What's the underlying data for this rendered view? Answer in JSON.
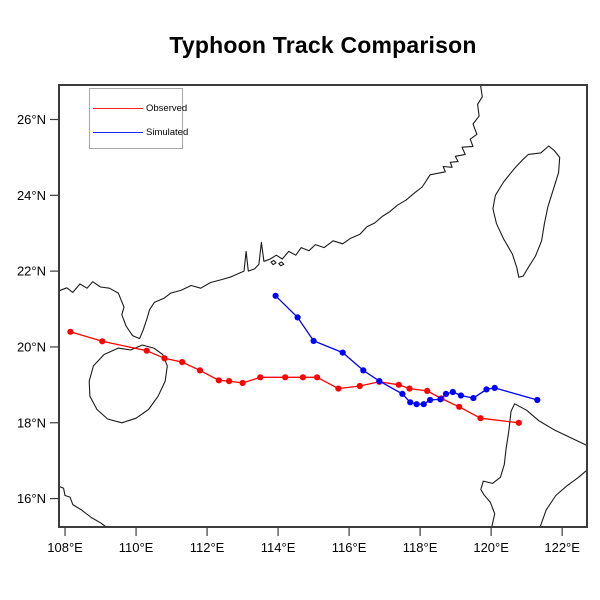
{
  "title": "Typhoon Track Comparison",
  "legend": {
    "items": [
      {
        "label": "Observed",
        "color": "#ff2020"
      },
      {
        "label": "Simulated",
        "color": "#2020ff"
      }
    ]
  },
  "chart_data": {
    "type": "line",
    "title": "Typhoon Track Comparison",
    "xlabel": "",
    "ylabel": "",
    "xlim": [
      107.83,
      122.7
    ],
    "ylim": [
      15.25,
      26.91
    ],
    "grid": false,
    "legend_position": "top-left",
    "x_ticks": {
      "values": [
        108,
        110,
        112,
        114,
        116,
        118,
        120,
        122
      ],
      "labels": [
        "108°E",
        "110°E",
        "112°E",
        "114°E",
        "116°E",
        "118°E",
        "120°E",
        "122°E"
      ]
    },
    "y_ticks": {
      "values": [
        16,
        18,
        20,
        22,
        24,
        26
      ],
      "labels": [
        "16°N",
        "18°N",
        "20°N",
        "22°N",
        "24°N",
        "26°N"
      ]
    },
    "series": [
      {
        "name": "Observed",
        "color": "#ff0000",
        "marker": "circle",
        "points": [
          [
            108.15,
            20.4
          ],
          [
            109.05,
            20.15
          ],
          [
            110.3,
            19.9
          ],
          [
            110.8,
            19.7
          ],
          [
            111.3,
            19.6
          ],
          [
            111.8,
            19.38
          ],
          [
            112.33,
            19.12
          ],
          [
            112.62,
            19.1
          ],
          [
            113.0,
            19.05
          ],
          [
            113.5,
            19.2
          ],
          [
            114.2,
            19.2
          ],
          [
            114.7,
            19.2
          ],
          [
            115.1,
            19.2
          ],
          [
            115.7,
            18.9
          ],
          [
            116.3,
            18.97
          ],
          [
            116.85,
            19.08
          ],
          [
            117.4,
            19.0
          ],
          [
            117.7,
            18.9
          ],
          [
            118.2,
            18.84
          ],
          [
            118.6,
            18.64
          ],
          [
            119.1,
            18.42
          ],
          [
            119.7,
            18.12
          ],
          [
            120.78,
            18.0
          ]
        ]
      },
      {
        "name": "Simulated",
        "color": "#0000ff",
        "marker": "circle",
        "points": [
          [
            113.93,
            21.35
          ],
          [
            114.55,
            20.78
          ],
          [
            115.0,
            20.16
          ],
          [
            115.82,
            19.85
          ],
          [
            116.4,
            19.38
          ],
          [
            116.85,
            19.1
          ],
          [
            117.5,
            18.76
          ],
          [
            117.72,
            18.54
          ],
          [
            117.9,
            18.49
          ],
          [
            118.1,
            18.49
          ],
          [
            118.28,
            18.6
          ],
          [
            118.57,
            18.62
          ],
          [
            118.73,
            18.76
          ],
          [
            118.92,
            18.81
          ],
          [
            119.15,
            18.72
          ],
          [
            119.5,
            18.65
          ],
          [
            119.87,
            18.88
          ],
          [
            120.1,
            18.92
          ],
          [
            121.3,
            18.6
          ]
        ]
      }
    ],
    "map_outlines": [
      {
        "name": "mainland-china-coast",
        "closed": false,
        "points": [
          [
            107.83,
            21.48
          ],
          [
            108.05,
            21.56
          ],
          [
            108.22,
            21.44
          ],
          [
            108.42,
            21.66
          ],
          [
            108.62,
            21.55
          ],
          [
            108.78,
            21.72
          ],
          [
            109.0,
            21.58
          ],
          [
            109.25,
            21.55
          ],
          [
            109.5,
            21.42
          ],
          [
            109.66,
            21.05
          ],
          [
            109.6,
            20.85
          ],
          [
            109.72,
            20.55
          ],
          [
            109.9,
            20.3
          ],
          [
            110.1,
            20.22
          ],
          [
            110.2,
            20.45
          ],
          [
            110.3,
            20.72
          ],
          [
            110.38,
            20.98
          ],
          [
            110.52,
            21.18
          ],
          [
            110.78,
            21.28
          ],
          [
            110.98,
            21.42
          ],
          [
            111.28,
            21.5
          ],
          [
            111.55,
            21.62
          ],
          [
            111.82,
            21.55
          ],
          [
            112.1,
            21.7
          ],
          [
            112.42,
            21.78
          ],
          [
            112.68,
            21.85
          ],
          [
            112.92,
            21.95
          ],
          [
            113.04,
            22.0
          ],
          [
            113.1,
            22.52
          ],
          [
            113.16,
            22.0
          ],
          [
            113.34,
            22.06
          ],
          [
            113.46,
            22.18
          ],
          [
            113.53,
            22.76
          ],
          [
            113.6,
            22.26
          ],
          [
            113.78,
            22.32
          ],
          [
            113.95,
            22.42
          ],
          [
            114.12,
            22.32
          ],
          [
            114.3,
            22.52
          ],
          [
            114.5,
            22.42
          ],
          [
            114.65,
            22.62
          ],
          [
            114.87,
            22.54
          ],
          [
            115.05,
            22.7
          ],
          [
            115.3,
            22.62
          ],
          [
            115.55,
            22.8
          ],
          [
            115.82,
            22.72
          ],
          [
            116.05,
            22.87
          ],
          [
            116.3,
            22.97
          ],
          [
            116.5,
            23.17
          ],
          [
            116.72,
            23.27
          ],
          [
            116.93,
            23.44
          ],
          [
            117.15,
            23.57
          ],
          [
            117.36,
            23.74
          ],
          [
            117.6,
            23.87
          ],
          [
            117.85,
            24.07
          ],
          [
            118.06,
            24.22
          ],
          [
            118.28,
            24.54
          ],
          [
            118.71,
            24.62
          ],
          [
            118.65,
            24.76
          ],
          [
            118.9,
            24.74
          ],
          [
            118.85,
            24.87
          ],
          [
            119.07,
            24.89
          ],
          [
            118.99,
            25.03
          ],
          [
            119.27,
            25.08
          ],
          [
            119.18,
            25.27
          ],
          [
            119.49,
            25.29
          ],
          [
            119.41,
            25.48
          ],
          [
            119.6,
            25.61
          ],
          [
            119.49,
            25.88
          ],
          [
            119.66,
            26.09
          ],
          [
            119.62,
            26.4
          ],
          [
            119.75,
            26.6
          ],
          [
            119.7,
            26.91
          ]
        ]
      },
      {
        "name": "hainan-island",
        "closed": true,
        "points": [
          [
            110.18,
            20.05
          ],
          [
            110.5,
            19.97
          ],
          [
            110.75,
            19.8
          ],
          [
            110.88,
            19.5
          ],
          [
            110.82,
            19.1
          ],
          [
            110.62,
            18.7
          ],
          [
            110.35,
            18.35
          ],
          [
            110.0,
            18.12
          ],
          [
            109.6,
            18.0
          ],
          [
            109.2,
            18.1
          ],
          [
            108.9,
            18.35
          ],
          [
            108.7,
            18.7
          ],
          [
            108.68,
            19.1
          ],
          [
            108.8,
            19.5
          ],
          [
            109.1,
            19.8
          ],
          [
            109.5,
            19.97
          ],
          [
            109.85,
            19.92
          ]
        ]
      },
      {
        "name": "taiwan-island",
        "closed": true,
        "points": [
          [
            121.05,
            25.08
          ],
          [
            121.4,
            25.12
          ],
          [
            121.62,
            25.3
          ],
          [
            121.78,
            25.18
          ],
          [
            121.93,
            25.0
          ],
          [
            121.9,
            24.6
          ],
          [
            121.75,
            24.15
          ],
          [
            121.6,
            23.7
          ],
          [
            121.5,
            23.25
          ],
          [
            121.42,
            22.8
          ],
          [
            121.25,
            22.4
          ],
          [
            121.05,
            22.1
          ],
          [
            120.9,
            21.87
          ],
          [
            120.78,
            21.84
          ],
          [
            120.72,
            22.1
          ],
          [
            120.6,
            22.45
          ],
          [
            120.35,
            22.85
          ],
          [
            120.15,
            23.25
          ],
          [
            120.05,
            23.65
          ],
          [
            120.12,
            24.0
          ],
          [
            120.35,
            24.35
          ],
          [
            120.65,
            24.7
          ],
          [
            120.9,
            24.95
          ]
        ]
      },
      {
        "name": "vietnam-coast",
        "closed": false,
        "points": [
          [
            107.83,
            16.32
          ],
          [
            107.96,
            16.27
          ],
          [
            108.0,
            16.08
          ],
          [
            108.14,
            16.04
          ],
          [
            108.22,
            15.84
          ],
          [
            108.46,
            15.7
          ],
          [
            108.74,
            15.5
          ],
          [
            109.0,
            15.36
          ],
          [
            109.16,
            15.25
          ]
        ]
      },
      {
        "name": "luzon-west-coast",
        "closed": false,
        "points": [
          [
            120.02,
            15.25
          ],
          [
            120.1,
            15.6
          ],
          [
            119.98,
            15.9
          ],
          [
            119.8,
            16.1
          ],
          [
            119.71,
            16.24
          ],
          [
            119.78,
            16.46
          ],
          [
            120.04,
            16.4
          ],
          [
            120.26,
            16.56
          ],
          [
            120.37,
            16.9
          ],
          [
            120.42,
            17.3
          ],
          [
            120.5,
            17.8
          ],
          [
            120.56,
            18.3
          ],
          [
            120.66,
            18.5
          ],
          [
            121.0,
            18.33
          ],
          [
            121.35,
            18.05
          ],
          [
            121.8,
            17.8
          ],
          [
            122.25,
            17.6
          ],
          [
            122.7,
            17.4
          ]
        ]
      },
      {
        "name": "luzon-east-coast",
        "closed": false,
        "points": [
          [
            121.38,
            15.25
          ],
          [
            121.55,
            15.7
          ],
          [
            121.82,
            16.08
          ],
          [
            122.15,
            16.35
          ],
          [
            122.45,
            16.55
          ],
          [
            122.7,
            16.75
          ]
        ]
      },
      {
        "name": "hongkong-island",
        "closed": true,
        "points": [
          [
            113.8,
            22.24
          ],
          [
            113.88,
            22.28
          ],
          [
            113.94,
            22.22
          ],
          [
            113.86,
            22.17
          ]
        ]
      },
      {
        "name": "lantau-island",
        "closed": true,
        "points": [
          [
            114.02,
            22.2
          ],
          [
            114.1,
            22.24
          ],
          [
            114.16,
            22.18
          ],
          [
            114.07,
            22.14
          ]
        ]
      }
    ]
  }
}
